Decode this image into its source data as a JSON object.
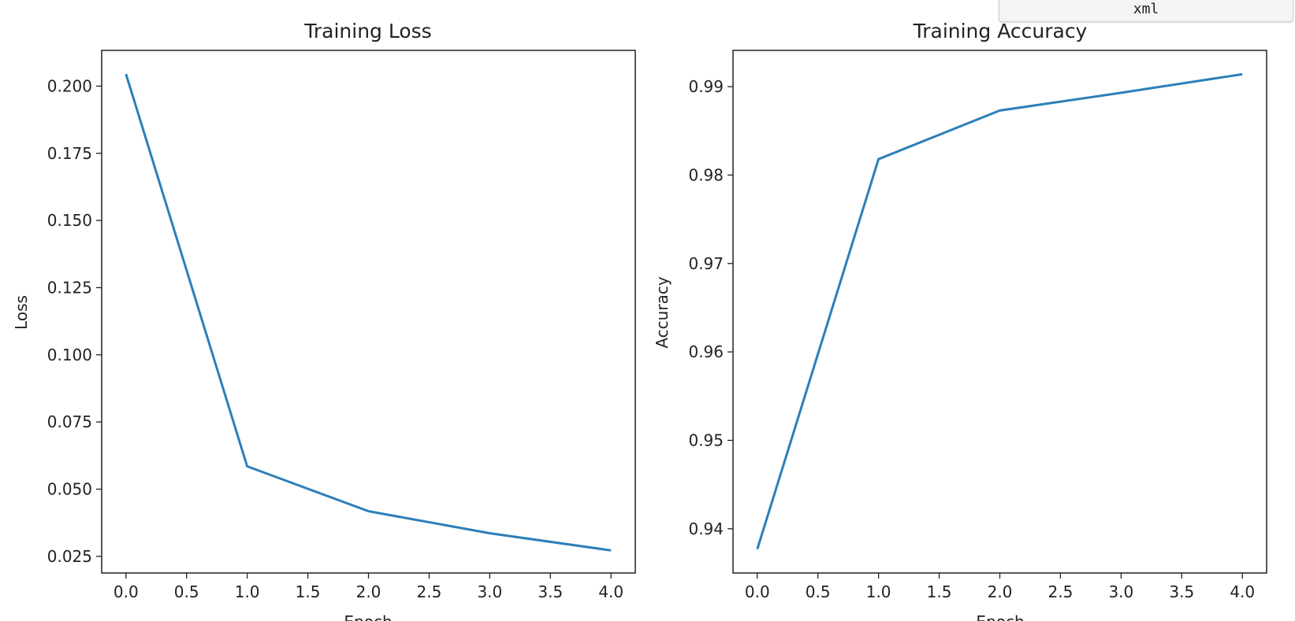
{
  "tooltip": {
    "text": "xml"
  },
  "chart_data": [
    {
      "type": "line",
      "title": "Training Loss",
      "xlabel": "Epoch",
      "ylabel": "Loss",
      "x": [
        0,
        1,
        2,
        3,
        4
      ],
      "series": [
        {
          "values": [
            0.2045,
            0.0585,
            0.0418,
            0.0336,
            0.0272
          ],
          "color": "#2c7fb8"
        }
      ],
      "xlim": [
        -0.2,
        4.2
      ],
      "ylim": [
        0.0188,
        0.2133
      ],
      "xticks": [
        0.0,
        0.5,
        1.0,
        1.5,
        2.0,
        2.5,
        3.0,
        3.5,
        4.0
      ],
      "yticks": [
        0.025,
        0.05,
        0.075,
        0.1,
        0.125,
        0.15,
        0.175,
        0.2
      ],
      "ytick_decimals": 3,
      "grid": false,
      "legend": "none"
    },
    {
      "type": "line",
      "title": "Training Accuracy",
      "xlabel": "Epoch",
      "ylabel": "Accuracy",
      "x": [
        0,
        1,
        2,
        3,
        4
      ],
      "series": [
        {
          "values": [
            0.9377,
            0.9818,
            0.9873,
            0.9893,
            0.9914
          ],
          "color": "#2c7fb8"
        }
      ],
      "xlim": [
        -0.2,
        4.2
      ],
      "ylim": [
        0.935,
        0.9941
      ],
      "xticks": [
        0.0,
        0.5,
        1.0,
        1.5,
        2.0,
        2.5,
        3.0,
        3.5,
        4.0
      ],
      "yticks": [
        0.94,
        0.95,
        0.96,
        0.97,
        0.98,
        0.99
      ],
      "ytick_decimals": 2,
      "grid": false,
      "legend": "none"
    }
  ]
}
